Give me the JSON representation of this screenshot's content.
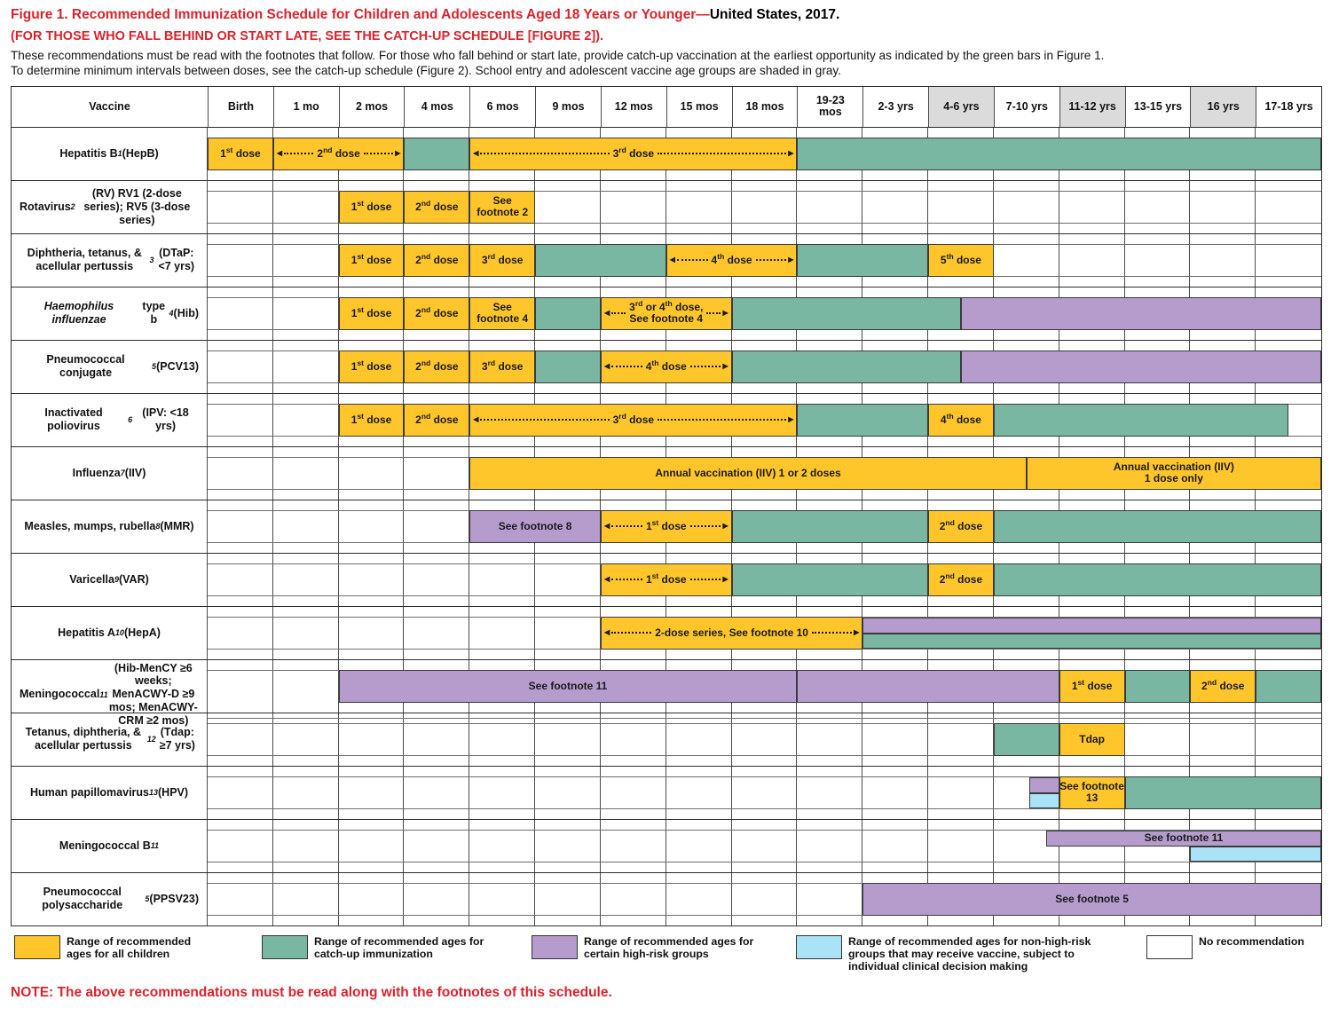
{
  "title": {
    "red": "Figure 1. Recommended Immunization Schedule for Children and Adolescents Aged 18 Years or Younger—",
    "black": "United States, 2017."
  },
  "subtitle": "(FOR THOSE WHO FALL BEHIND OR START LATE, SEE THE CATCH-UP SCHEDULE [FIGURE 2]).",
  "intro_line1": "These recommendations must be read with the footnotes that follow. For those who fall behind or start late, provide catch-up vaccination at the earliest opportunity as indicated by the green bars in Figure 1.",
  "intro_line2": "To determine minimum intervals between doses, see the catch-up schedule (Figure 2). School entry and adolescent vaccine age groups are shaded in gray.",
  "note": "NOTE: The above recommendations must be read along with the footnotes of this schedule.",
  "colors": {
    "yellow": "#FFC62B",
    "green": "#7AB7A2",
    "purple": "#B59CCD",
    "blue": "#A9E3F5",
    "header_shade": "#DBDBDB",
    "red_text": "#D9232E"
  },
  "header": {
    "vaccine": "Vaccine",
    "ages": [
      {
        "label": "Birth",
        "shaded": false
      },
      {
        "label": "1 mo",
        "shaded": false
      },
      {
        "label": "2 mos",
        "shaded": false
      },
      {
        "label": "4 mos",
        "shaded": false
      },
      {
        "label": "6 mos",
        "shaded": false
      },
      {
        "label": "9 mos",
        "shaded": false
      },
      {
        "label": "12 mos",
        "shaded": false
      },
      {
        "label": "15 mos",
        "shaded": false
      },
      {
        "label": "18 mos",
        "shaded": false
      },
      {
        "label": "19-23\nmos",
        "shaded": false
      },
      {
        "label": "2-3 yrs",
        "shaded": false
      },
      {
        "label": "4-6 yrs",
        "shaded": true
      },
      {
        "label": "7-10 yrs",
        "shaded": false
      },
      {
        "label": "11-12 yrs",
        "shaded": true
      },
      {
        "label": "13-15 yrs",
        "shaded": false
      },
      {
        "label": "16 yrs",
        "shaded": true
      },
      {
        "label": "17-18 yrs",
        "shaded": false
      }
    ]
  },
  "rows": [
    {
      "label": "Hepatitis B|1| (HepB)",
      "bars": [
        {
          "s": 0,
          "e": 1,
          "c": "y",
          "t": "1|st| dose"
        },
        {
          "s": 1,
          "e": 3,
          "c": "y",
          "t": "2|nd| dose",
          "a": true
        },
        {
          "s": 3,
          "e": 4,
          "c": "g"
        },
        {
          "s": 4,
          "e": 9,
          "c": "y",
          "t": "3|rd| dose",
          "a": true
        },
        {
          "s": 9,
          "e": 17,
          "c": "g"
        }
      ]
    },
    {
      "label": "Rotavirus|2| (RV) RV1 (2-dose series); RV5 (3-dose series)",
      "bars": [
        {
          "s": 2,
          "e": 3,
          "c": "y",
          "t": "1|st| dose"
        },
        {
          "s": 3,
          "e": 4,
          "c": "y",
          "t": "2|nd| dose"
        },
        {
          "s": 4,
          "e": 5,
          "c": "y",
          "t": "See\nfootnote 2"
        }
      ]
    },
    {
      "label": "Diphtheria, tetanus, & acellular pertussis|3| (DTaP: <7 yrs)",
      "bars": [
        {
          "s": 2,
          "e": 3,
          "c": "y",
          "t": "1|st| dose"
        },
        {
          "s": 3,
          "e": 4,
          "c": "y",
          "t": "2|nd| dose"
        },
        {
          "s": 4,
          "e": 5,
          "c": "y",
          "t": "3|rd| dose"
        },
        {
          "s": 5,
          "e": 7,
          "c": "g"
        },
        {
          "s": 7,
          "e": 9,
          "c": "y",
          "t": "4|th| dose",
          "a": true
        },
        {
          "s": 9,
          "e": 11,
          "c": "g"
        },
        {
          "s": 11,
          "e": 12,
          "c": "y",
          "t": "5|th| dose"
        }
      ]
    },
    {
      "label": "~Haemophilus influenzae~ type b|4| (Hib)",
      "bars": [
        {
          "s": 2,
          "e": 3,
          "c": "y",
          "t": "1|st| dose"
        },
        {
          "s": 3,
          "e": 4,
          "c": "y",
          "t": "2|nd| dose"
        },
        {
          "s": 4,
          "e": 5,
          "c": "y",
          "t": "See\nfootnote 4"
        },
        {
          "s": 5,
          "e": 6,
          "c": "g"
        },
        {
          "s": 6,
          "e": 8,
          "c": "y",
          "t": "3|rd| or 4|th| dose,\nSee footnote 4",
          "a": true
        },
        {
          "s": 8,
          "e": 11.5,
          "c": "g"
        },
        {
          "s": 11.5,
          "e": 17,
          "c": "p"
        }
      ]
    },
    {
      "label": "Pneumococcal conjugate|5| (PCV13)",
      "bars": [
        {
          "s": 2,
          "e": 3,
          "c": "y",
          "t": "1|st| dose"
        },
        {
          "s": 3,
          "e": 4,
          "c": "y",
          "t": "2|nd| dose"
        },
        {
          "s": 4,
          "e": 5,
          "c": "y",
          "t": "3|rd| dose"
        },
        {
          "s": 5,
          "e": 6,
          "c": "g"
        },
        {
          "s": 6,
          "e": 8,
          "c": "y",
          "t": "4|th| dose",
          "a": true
        },
        {
          "s": 8,
          "e": 11.5,
          "c": "g"
        },
        {
          "s": 11.5,
          "e": 17,
          "c": "p"
        }
      ]
    },
    {
      "label": "Inactivated poliovirus|6| (IPV: <18 yrs)",
      "bars": [
        {
          "s": 2,
          "e": 3,
          "c": "y",
          "t": "1|st| dose"
        },
        {
          "s": 3,
          "e": 4,
          "c": "y",
          "t": "2|nd| dose"
        },
        {
          "s": 4,
          "e": 9,
          "c": "y",
          "t": "3|rd| dose",
          "a": true
        },
        {
          "s": 9,
          "e": 11,
          "c": "g"
        },
        {
          "s": 11,
          "e": 12,
          "c": "y",
          "t": "4|th| dose"
        },
        {
          "s": 12,
          "e": 16.5,
          "c": "g"
        }
      ]
    },
    {
      "label": "Influenza|7| (IIV)",
      "bars": [
        {
          "s": 4,
          "e": 12.5,
          "c": "y",
          "t": "Annual vaccination (IIV) 1 or 2 doses"
        },
        {
          "s": 12.5,
          "e": 17,
          "c": "y",
          "t": "Annual vaccination (IIV)\n1 dose only"
        }
      ]
    },
    {
      "label": "Measles, mumps, rubella|8| (MMR)",
      "bars": [
        {
          "s": 4,
          "e": 6,
          "c": "p",
          "t": "See footnote 8"
        },
        {
          "s": 6,
          "e": 8,
          "c": "y",
          "t": "1|st| dose",
          "a": true
        },
        {
          "s": 8,
          "e": 11,
          "c": "g"
        },
        {
          "s": 11,
          "e": 12,
          "c": "y",
          "t": "2|nd| dose"
        },
        {
          "s": 12,
          "e": 17,
          "c": "g"
        }
      ]
    },
    {
      "label": "Varicella|9| (VAR)",
      "bars": [
        {
          "s": 6,
          "e": 8,
          "c": "y",
          "t": "1|st| dose",
          "a": true
        },
        {
          "s": 8,
          "e": 11,
          "c": "g"
        },
        {
          "s": 11,
          "e": 12,
          "c": "y",
          "t": "2|nd| dose"
        },
        {
          "s": 12,
          "e": 17,
          "c": "g"
        }
      ]
    },
    {
      "label": "Hepatitis A|10| (HepA)",
      "bars": [
        {
          "s": 6,
          "e": 10,
          "c": "y",
          "t": "2-dose series, See footnote 10",
          "a": true
        },
        {
          "s": 10,
          "e": 17,
          "c": "p",
          "v": "top"
        },
        {
          "s": 10,
          "e": 17,
          "c": "g",
          "v": "bot"
        }
      ]
    },
    {
      "label": "Meningococcal|11| (Hib-MenCY ≥6 weeks; MenACWY-D ≥9 mos; MenACWY-CRM ≥2 mos)",
      "bars": [
        {
          "s": 2,
          "e": 9,
          "c": "p",
          "t": "See footnote 11"
        },
        {
          "s": 9,
          "e": 13,
          "c": "p"
        },
        {
          "s": 13,
          "e": 14,
          "c": "y",
          "t": "1|st| dose"
        },
        {
          "s": 14,
          "e": 15,
          "c": "g"
        },
        {
          "s": 15,
          "e": 16,
          "c": "y",
          "t": "2|nd| dose"
        },
        {
          "s": 16,
          "e": 17,
          "c": "g"
        }
      ]
    },
    {
      "label": "Tetanus, diphtheria, & acellular pertussis|12| (Tdap: ≥7 yrs)",
      "bars": [
        {
          "s": 12,
          "e": 13,
          "c": "g"
        },
        {
          "s": 13,
          "e": 14,
          "c": "y",
          "t": "Tdap"
        }
      ]
    },
    {
      "label": "Human papillomavirus|13| (HPV)",
      "bars": [
        {
          "s": 12.55,
          "e": 13,
          "c": "p",
          "v": "top"
        },
        {
          "s": 12.55,
          "e": 13,
          "c": "b",
          "v": "bot"
        },
        {
          "s": 13,
          "e": 14,
          "c": "y",
          "t": "See footnote\n13"
        },
        {
          "s": 14,
          "e": 17,
          "c": "g"
        }
      ]
    },
    {
      "label": "Meningococcal B|11|",
      "bars": [
        {
          "s": 12.8,
          "e": 17,
          "c": "p",
          "t": "See footnote 11",
          "v": "top"
        },
        {
          "s": 15,
          "e": 17,
          "c": "b",
          "v": "bot"
        }
      ]
    },
    {
      "label": "Pneumococcal polysaccharide|5| (PPSV23)",
      "bars": [
        {
          "s": 10,
          "e": 17,
          "c": "p",
          "t": "See footnote 5"
        }
      ]
    }
  ],
  "legend": [
    {
      "color": "yellow",
      "text": "Range of recommended ages for all children"
    },
    {
      "color": "green",
      "text": "Range of recommended ages for catch-up immunization"
    },
    {
      "color": "purple",
      "text": "Range of recommended ages for certain high-risk  groups"
    },
    {
      "color": "blue",
      "text": "Range of recommended ages for non-high-risk groups that may receive vaccine, subject to individual clinical decision making"
    },
    {
      "color": "white",
      "text": "No recommendation"
    }
  ]
}
